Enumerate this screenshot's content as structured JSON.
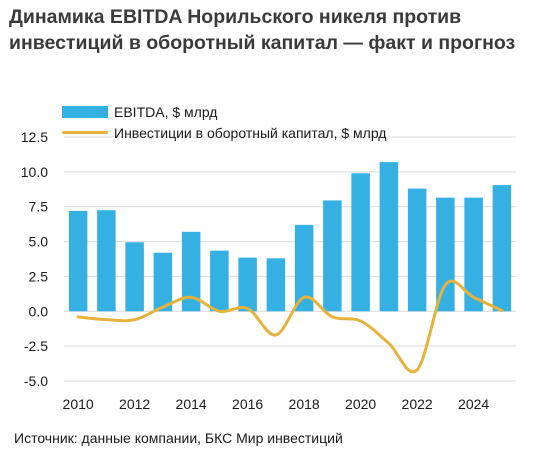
{
  "title": "Динамика EBITDA Норильского никеля против инвестиций в оборотный капитал — факт и прогноз",
  "source": "Источник: данные компании, БКС Мир инвестиций",
  "colors": {
    "bar": "#34b0e3",
    "line": "#e5b33b",
    "grid": "#d9d9d9"
  },
  "chart_data": {
    "type": "bar",
    "years": [
      2010,
      2011,
      2012,
      2013,
      2014,
      2015,
      2016,
      2017,
      2018,
      2019,
      2020,
      2021,
      2022,
      2023,
      2024,
      2025
    ],
    "x_ticks": [
      "2010",
      "2012",
      "2014",
      "2016",
      "2018",
      "2020",
      "2022",
      "2024"
    ],
    "y_ticks": [
      "12.5",
      "10.0",
      "7.5",
      "5.0",
      "2.5",
      "0.0",
      "-2.5",
      "-5.0"
    ],
    "ylim": [
      -5,
      12.5
    ],
    "grid": true,
    "legend_position": "top-left",
    "series": [
      {
        "name": "EBITDA, $ млрд",
        "kind": "bar",
        "values": [
          7.2,
          7.25,
          4.95,
          4.2,
          5.7,
          4.35,
          3.85,
          3.8,
          6.2,
          7.95,
          9.9,
          10.7,
          8.8,
          8.15,
          8.15,
          9.05
        ]
      },
      {
        "name": "Инвестиции в оборотный капитал, $ млрд",
        "kind": "line",
        "values": [
          -0.4,
          -0.6,
          -0.6,
          0.3,
          1.0,
          0.0,
          0.2,
          -1.7,
          1.0,
          -0.4,
          -0.7,
          -2.3,
          -4.2,
          1.9,
          1.0,
          0.05
        ]
      }
    ]
  }
}
